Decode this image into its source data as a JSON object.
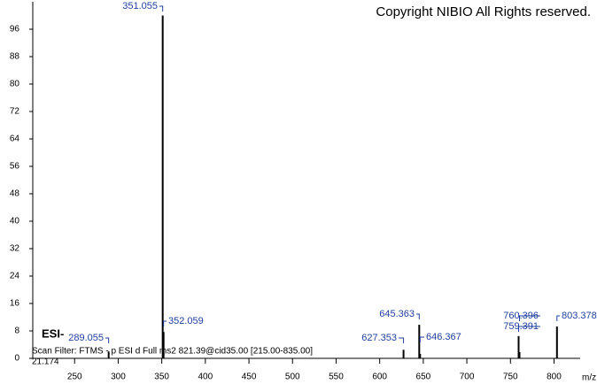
{
  "chart_data": {
    "type": "bar",
    "title": "Copyright NIBIO All Rights reserved.",
    "ionization": "ESI-",
    "scan_filter": "Scan Filter: FTMS - p ESI d Full ms2 821.39@cid35.00 [215.00-835.00]",
    "retention_time": "21.174",
    "x_label": "m/z",
    "x": [
      289.055,
      351.055,
      352.059,
      627.353,
      645.363,
      646.367,
      759.391,
      760.396,
      803.378
    ],
    "values": [
      2,
      100,
      7.7,
      2.5,
      9.8,
      1.3,
      6.5,
      1.8,
      9.3
    ],
    "color": "#000000",
    "xlim": [
      202,
      830
    ],
    "ylim": [
      0,
      104
    ],
    "xticks": [
      250,
      300,
      350,
      400,
      450,
      500,
      550,
      600,
      650,
      700,
      750,
      800
    ],
    "yticks": [
      0,
      8,
      16,
      24,
      32,
      40,
      48,
      56,
      64,
      72,
      80,
      88,
      96
    ]
  }
}
